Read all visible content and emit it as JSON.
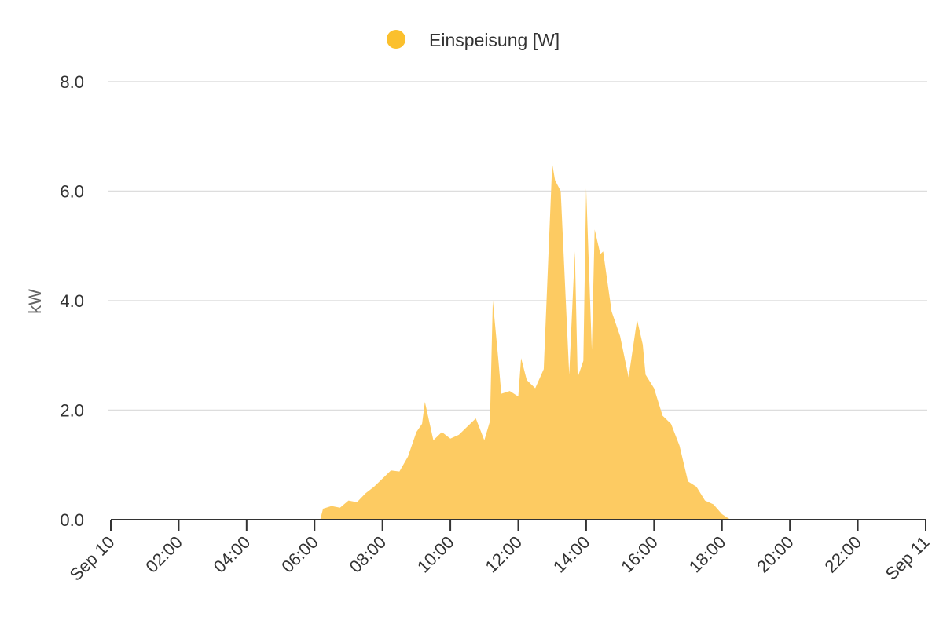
{
  "chart_data": {
    "type": "area",
    "title": "",
    "xlabel": "",
    "ylabel": "kW",
    "series": [
      {
        "name": "Einspeisung [W]",
        "color": "#fbc02d",
        "fill": "#fdcb62",
        "x": [
          "06:00",
          "06:15",
          "06:30",
          "06:45",
          "07:00",
          "07:15",
          "07:30",
          "07:45",
          "08:00",
          "08:15",
          "08:30",
          "08:45",
          "09:00",
          "09:10",
          "09:15",
          "09:30",
          "09:45",
          "10:00",
          "10:15",
          "10:30",
          "10:45",
          "11:00",
          "11:10",
          "11:15",
          "11:25",
          "11:30",
          "11:45",
          "12:00",
          "12:05",
          "12:15",
          "12:30",
          "12:45",
          "13:00",
          "13:05",
          "13:15",
          "13:30",
          "13:40",
          "13:45",
          "13:55",
          "14:00",
          "14:10",
          "14:15",
          "14:25",
          "14:30",
          "14:45",
          "15:00",
          "15:15",
          "15:30",
          "15:40",
          "15:45",
          "16:00",
          "16:15",
          "16:30",
          "16:45",
          "17:00",
          "17:15",
          "17:30",
          "17:45",
          "18:00",
          "18:15"
        ],
        "values": [
          0.0,
          0.2,
          0.25,
          0.22,
          0.35,
          0.32,
          0.48,
          0.6,
          0.75,
          0.9,
          0.88,
          1.15,
          1.6,
          1.75,
          2.15,
          1.45,
          1.6,
          1.48,
          1.55,
          1.7,
          1.85,
          1.45,
          1.8,
          4.0,
          2.9,
          2.3,
          2.35,
          2.25,
          2.95,
          2.55,
          2.4,
          2.75,
          6.5,
          6.2,
          6.0,
          2.65,
          4.9,
          2.6,
          2.9,
          6.05,
          3.1,
          5.3,
          4.85,
          4.9,
          3.8,
          3.35,
          2.6,
          3.65,
          3.2,
          2.65,
          2.4,
          1.9,
          1.75,
          1.35,
          0.7,
          0.6,
          0.35,
          0.28,
          0.1,
          0.0
        ],
        "start": "06:10",
        "end": "18:15"
      }
    ],
    "x_ticks": [
      "Sep 10",
      "02:00",
      "04:00",
      "06:00",
      "08:00",
      "10:00",
      "12:00",
      "14:00",
      "16:00",
      "18:00",
      "20:00",
      "22:00",
      "Sep 11"
    ],
    "y_ticks": [
      "0.0",
      "2.0",
      "4.0",
      "6.0",
      "8.0"
    ],
    "ylim": [
      0,
      8
    ],
    "xlim": [
      "00:00",
      "24:00"
    ],
    "grid": true,
    "legend": "top-center"
  }
}
